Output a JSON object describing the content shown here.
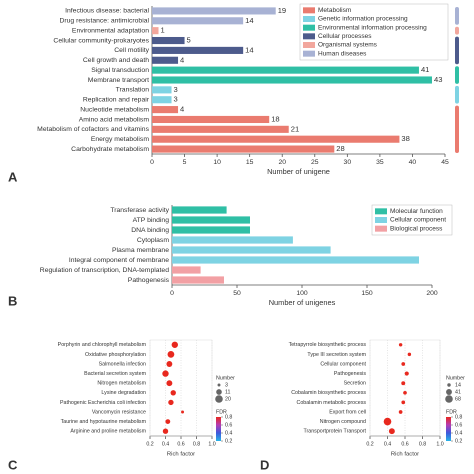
{
  "chart_data": [
    {
      "type": "hbar",
      "panel_label": "A",
      "xlabel": "Number of unigene",
      "categories": [
        "Infectious disease: bacterial",
        "Drug resistance: antimicrobial",
        "Environmental adaptation",
        "Cellular community-prokaryotes",
        "Cell motility",
        "Cell growth and death",
        "Signal transduction",
        "Membrane transport",
        "Translation",
        "Replication and repair",
        "Nucleotide metabolism",
        "Amino acid metabolism",
        "Metabolism of cofactors and vitamins",
        "Energy metabolism",
        "Carbohydrate metabolism"
      ],
      "series": [
        {
          "name": "Metabolism",
          "color": "#ea7b6f",
          "values": [
            null,
            null,
            null,
            null,
            null,
            null,
            null,
            null,
            null,
            null,
            4,
            18,
            21,
            38,
            28
          ]
        },
        {
          "name": "Genetic information processing",
          "color": "#7ed3e3",
          "values": [
            null,
            null,
            null,
            null,
            null,
            null,
            null,
            null,
            3,
            3,
            null,
            null,
            null,
            null,
            null
          ]
        },
        {
          "name": "Environmental information processing",
          "color": "#2fbfa5",
          "values": [
            null,
            null,
            null,
            null,
            null,
            null,
            41,
            43,
            null,
            null,
            null,
            null,
            null,
            null,
            null
          ]
        },
        {
          "name": "Cellular processes",
          "color": "#4d5b8c",
          "values": [
            null,
            null,
            null,
            5,
            14,
            4,
            null,
            null,
            null,
            null,
            null,
            null,
            null,
            null,
            null
          ]
        },
        {
          "name": "Organismal systems",
          "color": "#f2a79d",
          "values": [
            null,
            null,
            1,
            null,
            null,
            null,
            null,
            null,
            null,
            null,
            null,
            null,
            null,
            null,
            null
          ]
        },
        {
          "name": "Human diseases",
          "color": "#a8b2d4",
          "values": [
            19,
            14,
            null,
            null,
            null,
            null,
            null,
            null,
            null,
            null,
            null,
            null,
            null,
            null,
            null
          ]
        }
      ],
      "data_labels": true,
      "group_brackets": true,
      "xlim": [
        0,
        45
      ],
      "xticks": [
        0,
        5,
        10,
        15,
        20,
        25,
        30,
        35,
        40,
        45
      ]
    },
    {
      "type": "hbar",
      "panel_label": "B",
      "xlabel": "Number of unigenes",
      "categories": [
        "Transferase activity",
        "ATP binding",
        "DNA binding",
        "Cytoplasm",
        "Plasma membrane",
        "Integral component of membrane",
        "Regulation of transcription, DNA-templated",
        "Pathogenesis"
      ],
      "series": [
        {
          "name": "Molecular function",
          "color": "#2fbfa5",
          "values": [
            42,
            60,
            60,
            null,
            null,
            null,
            null,
            null
          ]
        },
        {
          "name": "Cellular component",
          "color": "#7ed3e3",
          "values": [
            null,
            null,
            null,
            93,
            122,
            190,
            null,
            null
          ]
        },
        {
          "name": "Biological process",
          "color": "#f2a0a4",
          "values": [
            null,
            null,
            null,
            null,
            null,
            null,
            22,
            40
          ]
        }
      ],
      "data_labels": false,
      "group_brackets": false,
      "xlim": [
        0,
        200
      ],
      "xticks": [
        0,
        50,
        100,
        150,
        200
      ]
    },
    {
      "type": "bubble",
      "panel_label": "C",
      "xlabel": "Rich factor",
      "categories": [
        "Porphyrin and chlorophyll metabolism",
        "Oxidative phosphorylation",
        "Salmonella infection",
        "Bacterial secretion system",
        "Nitrogen metabolism",
        "Lysine degradation",
        "Pathogenic Escherichia coli infection",
        "Vancomycin resistance",
        "Taurine and hypotaurine metabolism",
        "Arginine and proline metabolism"
      ],
      "values": [
        0.52,
        0.47,
        0.45,
        0.4,
        0.45,
        0.5,
        0.47,
        0.62,
        0.43,
        0.4
      ],
      "sizes": [
        14,
        16,
        12,
        14,
        12,
        10,
        10,
        3,
        8,
        10
      ],
      "color": "#e8281e",
      "xlim": [
        0.2,
        1
      ],
      "xticks": [
        0.2,
        0.4,
        0.6,
        0.8,
        {
          "value": 1,
          "label": "1.0"
        }
      ],
      "size_legend": {
        "title": "Number",
        "values": [
          3,
          11,
          20
        ]
      },
      "color_legend": {
        "title": "FDR",
        "ticks": [
          0.8,
          0.6,
          0.4,
          0.2
        ],
        "colormap": [
          "#e8281e",
          "#b43cb4",
          "#3c5adc",
          "#28b4e6"
        ]
      }
    },
    {
      "type": "bubble",
      "panel_label": "D",
      "xlabel": "Rich factor",
      "categories": [
        "Tetrapyrrole biosynthetic process",
        "Type III secretion system",
        "Cellular component",
        "Pathogenesis",
        "Secretion",
        "Cobalamin biosynthetic process",
        "Cobalamin metabolic process",
        "Export from cell",
        "Nitrogen compound",
        "Transportprotein Transport"
      ],
      "values": [
        0.55,
        0.65,
        0.58,
        0.62,
        0.58,
        0.6,
        0.58,
        0.55,
        0.4,
        0.45
      ],
      "sizes": [
        14,
        14,
        16,
        20,
        18,
        16,
        16,
        16,
        68,
        41
      ],
      "color": "#e8281e",
      "xlim": [
        0.2,
        1
      ],
      "xticks": [
        0.2,
        0.4,
        0.6,
        0.8,
        {
          "value": 1,
          "label": "1.0"
        }
      ],
      "size_legend": {
        "title": "Number",
        "values": [
          14,
          41,
          68
        ]
      },
      "color_legend": {
        "title": "FDR",
        "ticks": [
          0.8,
          0.6,
          0.4,
          0.2
        ],
        "colormap": [
          "#e8281e",
          "#b43cb4",
          "#3c5adc",
          "#28b4e6"
        ]
      }
    }
  ]
}
